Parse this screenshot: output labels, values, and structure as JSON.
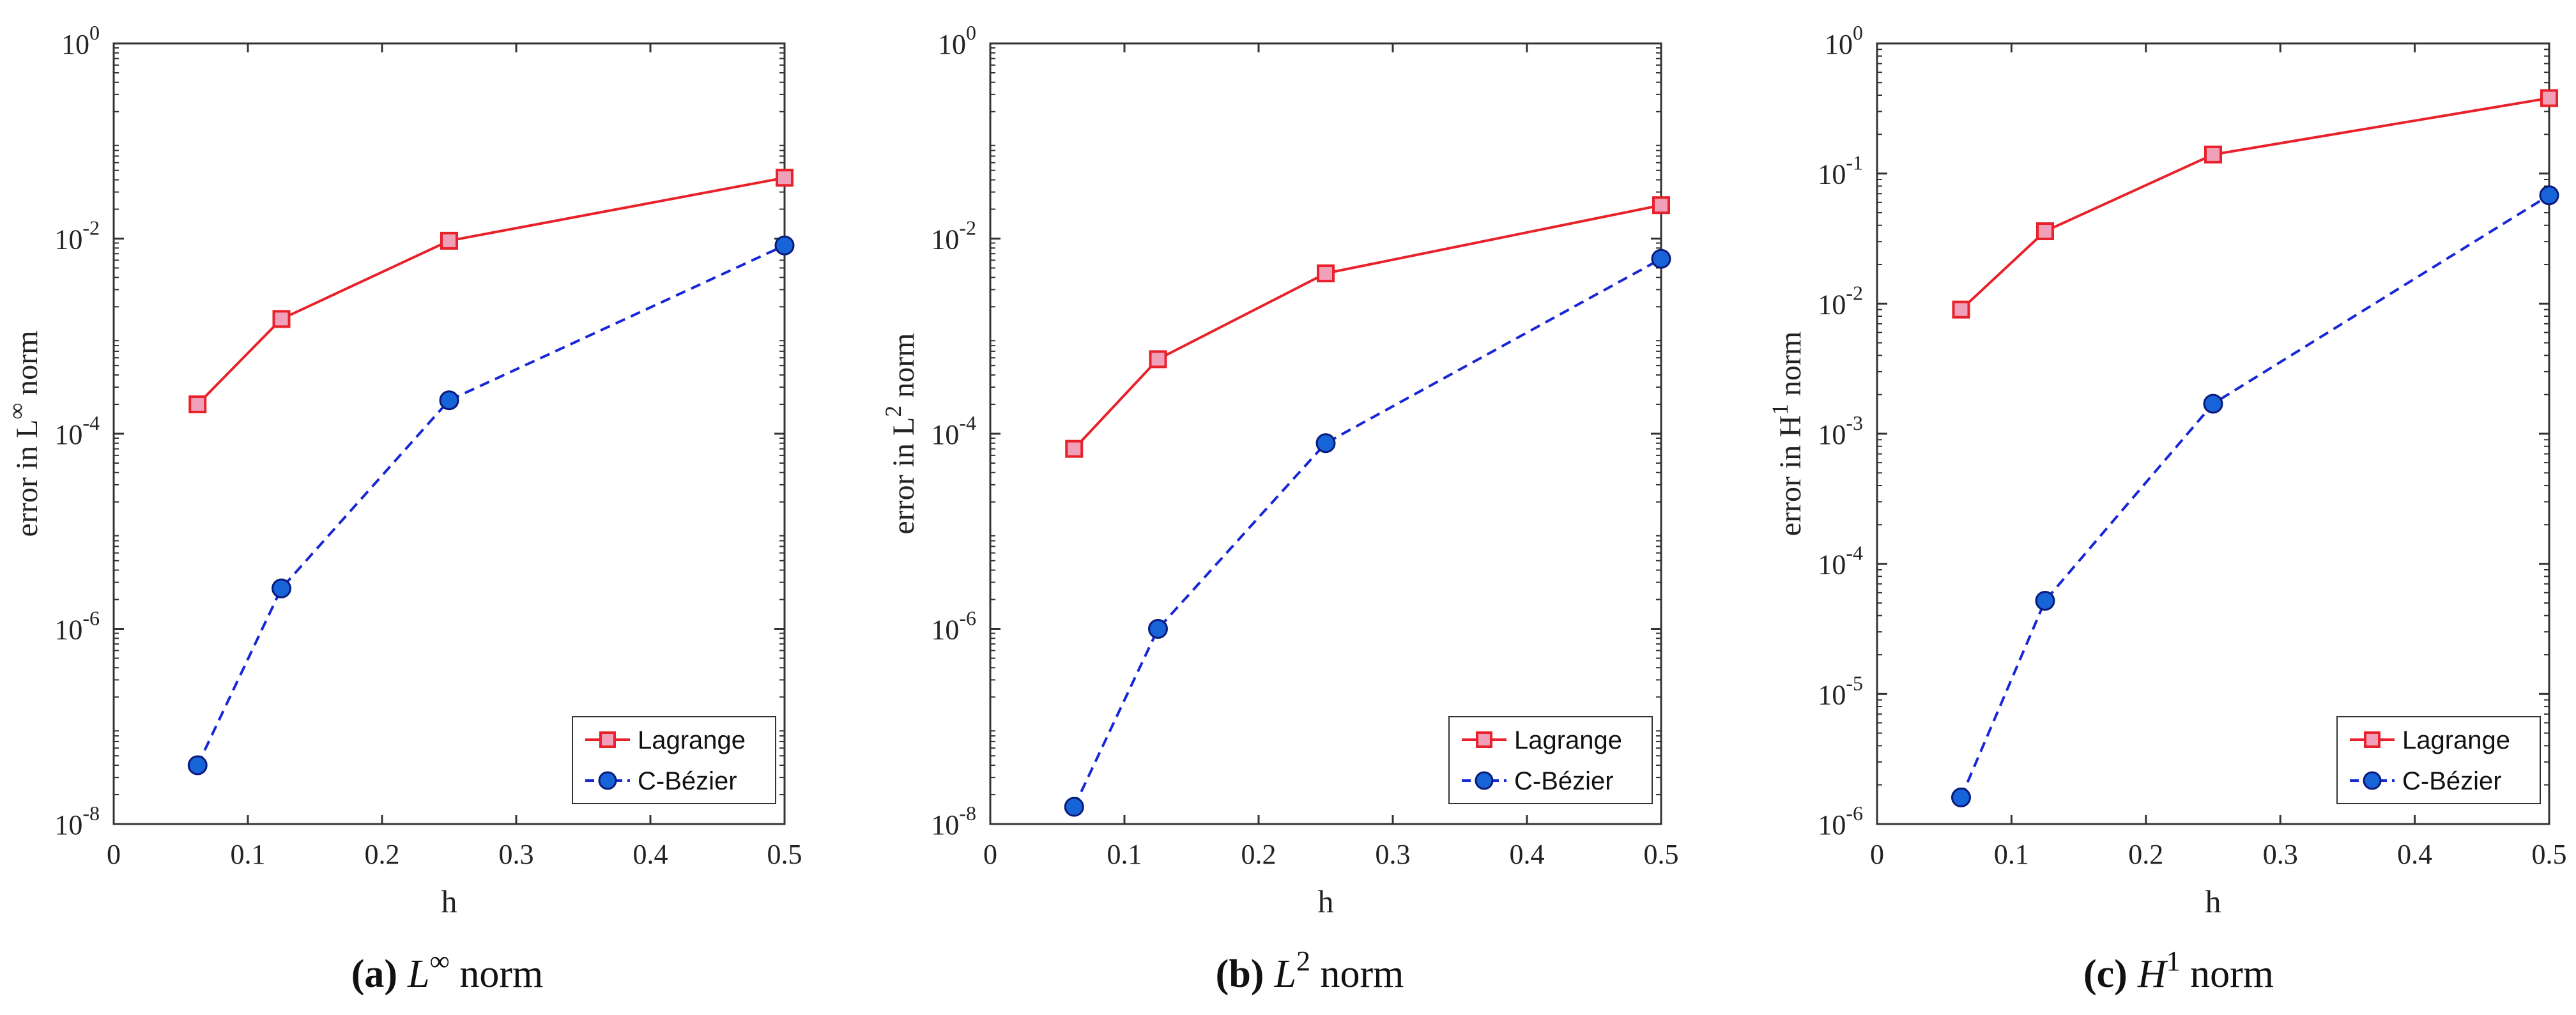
{
  "colors": {
    "lagrange_line": "#e8212a",
    "lagrange_marker_fill": "#f0a0b8",
    "bezier_line": "#1726d6",
    "bezier_marker_fill": "#1763d8",
    "axis": "#333333"
  },
  "chart_data": [
    {
      "type": "line",
      "id": "a",
      "xscale": "linear",
      "yscale": "log",
      "xlabel": "h",
      "ylabel_parts": [
        "error in L",
        "∞",
        " norm"
      ],
      "xlim": [
        0,
        0.5
      ],
      "xticks": [
        0,
        0.1,
        0.2,
        0.3,
        0.4,
        0.5
      ],
      "xtick_labels": [
        "0",
        "0.1",
        "0.2",
        "0.3",
        "0.4",
        "0.5"
      ],
      "ylim_exp": [
        -8,
        0
      ],
      "ytick_exps": [
        -8,
        -6,
        -4,
        -2,
        0
      ],
      "ytick_labels": [
        "-8",
        "-6",
        "-4",
        "-2",
        "0"
      ],
      "ytick_base": "10",
      "legend_position": "bottom-right",
      "series": [
        {
          "name": "Lagrange",
          "style": "solid",
          "marker": "square",
          "x": [
            0.0625,
            0.125,
            0.25,
            0.5
          ],
          "y": [
            0.0002,
            0.0015,
            0.0095,
            0.042
          ]
        },
        {
          "name": "C-Bézier",
          "style": "dashed",
          "marker": "circle",
          "x": [
            0.0625,
            0.125,
            0.25,
            0.5
          ],
          "y": [
            4e-08,
            2.6e-06,
            0.00022,
            0.0085
          ]
        }
      ],
      "caption_label": "(a)",
      "caption_math": "L",
      "caption_sup": "∞",
      "caption_rest": " norm"
    },
    {
      "type": "line",
      "id": "b",
      "xscale": "linear",
      "yscale": "log",
      "xlabel": "h",
      "ylabel_parts": [
        "error in L",
        "2",
        " norm"
      ],
      "xlim": [
        0,
        0.5
      ],
      "xticks": [
        0,
        0.1,
        0.2,
        0.3,
        0.4,
        0.5
      ],
      "xtick_labels": [
        "0",
        "0.1",
        "0.2",
        "0.3",
        "0.4",
        "0.5"
      ],
      "ylim_exp": [
        -8,
        0
      ],
      "ytick_exps": [
        -8,
        -6,
        -4,
        -2,
        0
      ],
      "ytick_labels": [
        "-8",
        "-6",
        "-4",
        "-2",
        "0"
      ],
      "ytick_base": "10",
      "legend_position": "bottom-right",
      "series": [
        {
          "name": "Lagrange",
          "style": "solid",
          "marker": "square",
          "x": [
            0.0625,
            0.125,
            0.25,
            0.5
          ],
          "y": [
            7e-05,
            0.00058,
            0.0044,
            0.022
          ]
        },
        {
          "name": "C-Bézier",
          "style": "dashed",
          "marker": "circle",
          "x": [
            0.0625,
            0.125,
            0.25,
            0.5
          ],
          "y": [
            1.5e-08,
            1e-06,
            8e-05,
            0.0062
          ]
        }
      ],
      "caption_label": "(b)",
      "caption_math": "L",
      "caption_sup": "2",
      "caption_rest": " norm"
    },
    {
      "type": "line",
      "id": "c",
      "xscale": "linear",
      "yscale": "log",
      "xlabel": "h",
      "ylabel_parts": [
        "error in H",
        "1",
        " norm"
      ],
      "xlim": [
        0,
        0.5
      ],
      "xticks": [
        0,
        0.1,
        0.2,
        0.3,
        0.4,
        0.5
      ],
      "xtick_labels": [
        "0",
        "0.1",
        "0.2",
        "0.3",
        "0.4",
        "0.5"
      ],
      "ylim_exp": [
        -6,
        0
      ],
      "ytick_exps": [
        -6,
        -5,
        -4,
        -3,
        -2,
        -1,
        0
      ],
      "ytick_labels": [
        "-6",
        "-5",
        "-4",
        "-3",
        "-2",
        "-1",
        "0"
      ],
      "ytick_base": "10",
      "legend_position": "bottom-right",
      "series": [
        {
          "name": "Lagrange",
          "style": "solid",
          "marker": "square",
          "x": [
            0.0625,
            0.125,
            0.25,
            0.5
          ],
          "y": [
            0.009,
            0.036,
            0.14,
            0.38
          ]
        },
        {
          "name": "C-Bézier",
          "style": "dashed",
          "marker": "circle",
          "x": [
            0.0625,
            0.125,
            0.25,
            0.5
          ],
          "y": [
            1.6e-06,
            5.2e-05,
            0.0017,
            0.068
          ]
        }
      ],
      "caption_label": "(c)",
      "caption_math": "H",
      "caption_sup": "1",
      "caption_rest": " norm"
    }
  ]
}
